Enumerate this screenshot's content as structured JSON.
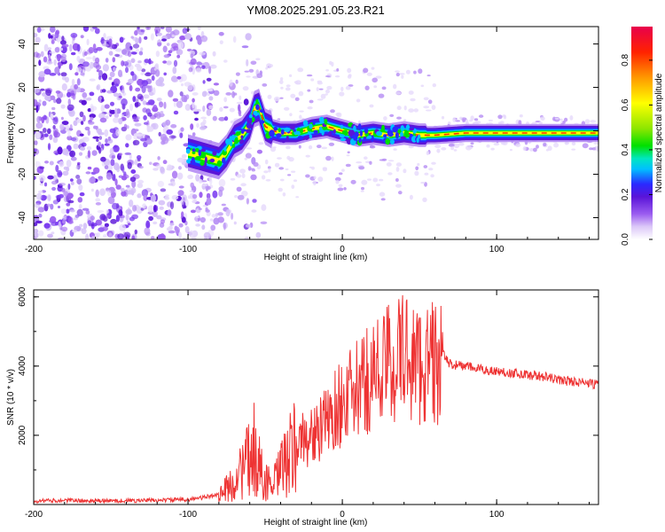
{
  "title": "YM08.2025.291.05.23.R21",
  "chart_data": [
    {
      "type": "heatmap",
      "name": "spectrogram",
      "title": "YM08.2025.291.05.23.R21",
      "xlabel": "Height of straight line (km)",
      "ylabel": "Frequency (Hz)",
      "xlim": [
        -200,
        166
      ],
      "ylim": [
        -50,
        48
      ],
      "xticks": [
        -200,
        -100,
        0,
        100
      ],
      "yticks": [
        -40,
        -20,
        0,
        20,
        40
      ],
      "xtick_labels": [
        "-200",
        "-100",
        "0",
        "100"
      ],
      "ytick_labels": [
        "-40",
        "-20",
        "0",
        "20",
        "40"
      ],
      "ridge": {
        "x": [
          -100,
          -90,
          -80,
          -75,
          -70,
          -65,
          -60,
          -57,
          -54,
          -50,
          -45,
          -40,
          -30,
          -20,
          -10,
          0,
          10,
          20,
          30,
          40,
          50,
          60,
          80,
          100,
          120,
          140,
          160,
          166
        ],
        "y": [
          -10,
          -12,
          -14,
          -10,
          -4,
          -2,
          3,
          10,
          11,
          2,
          0,
          -1,
          -1,
          1,
          2,
          0,
          -2,
          -1,
          -2,
          -1,
          -2,
          -2,
          -1,
          -1,
          -1,
          -1,
          -1,
          -1
        ]
      },
      "colorbar": {
        "label": "Normalized spectral amplitude",
        "range": [
          0,
          0.95
        ],
        "ticks": [
          0.0,
          0.2,
          0.4,
          0.6,
          0.8
        ],
        "tick_labels": [
          "0.0",
          "0.2",
          "0.4",
          "0.6",
          "0.8"
        ],
        "colors": [
          "#ffffff",
          "#dcc8f8",
          "#9a5cf0",
          "#5a14d8",
          "#2a2aff",
          "#00bfff",
          "#00e6c0",
          "#00e000",
          "#8ce600",
          "#ffff00",
          "#ff9900",
          "#ff2200",
          "#e8004c"
        ]
      }
    },
    {
      "type": "line",
      "name": "snr",
      "xlabel": "Height of straight line (km)",
      "ylabel": "SNR (10 * v/v)",
      "xlim": [
        -200,
        166
      ],
      "ylim": [
        0,
        6200
      ],
      "xticks": [
        -200,
        -100,
        0,
        100
      ],
      "yticks": [
        2000,
        4000,
        6000
      ],
      "xtick_labels": [
        "-200",
        "-100",
        "0",
        "100"
      ],
      "ytick_labels": [
        "2000",
        "4000",
        "6000"
      ],
      "color": "#ee3333",
      "series": [
        {
          "name": "SNR",
          "x": [
            -200,
            -180,
            -160,
            -140,
            -120,
            -100,
            -90,
            -80,
            -75,
            -70,
            -65,
            -60,
            -57,
            -54,
            -50,
            -45,
            -40,
            -35,
            -30,
            -25,
            -20,
            -15,
            -10,
            -5,
            0,
            5,
            10,
            15,
            20,
            25,
            30,
            35,
            40,
            45,
            50,
            55,
            60,
            62,
            65,
            70,
            80,
            90,
            100,
            110,
            120,
            130,
            140,
            150,
            160,
            166
          ],
          "y": [
            100,
            120,
            100,
            110,
            120,
            150,
            200,
            300,
            450,
            650,
            1000,
            1300,
            1600,
            1100,
            700,
            500,
            1000,
            1300,
            1700,
            1900,
            2000,
            2100,
            2400,
            2700,
            3000,
            3100,
            3300,
            3500,
            3800,
            3900,
            4100,
            4200,
            4350,
            4250,
            4000,
            4100,
            4100,
            3950,
            4350,
            4050,
            4000,
            3900,
            3850,
            3800,
            3750,
            3700,
            3600,
            3550,
            3500,
            3450
          ]
        }
      ]
    }
  ]
}
